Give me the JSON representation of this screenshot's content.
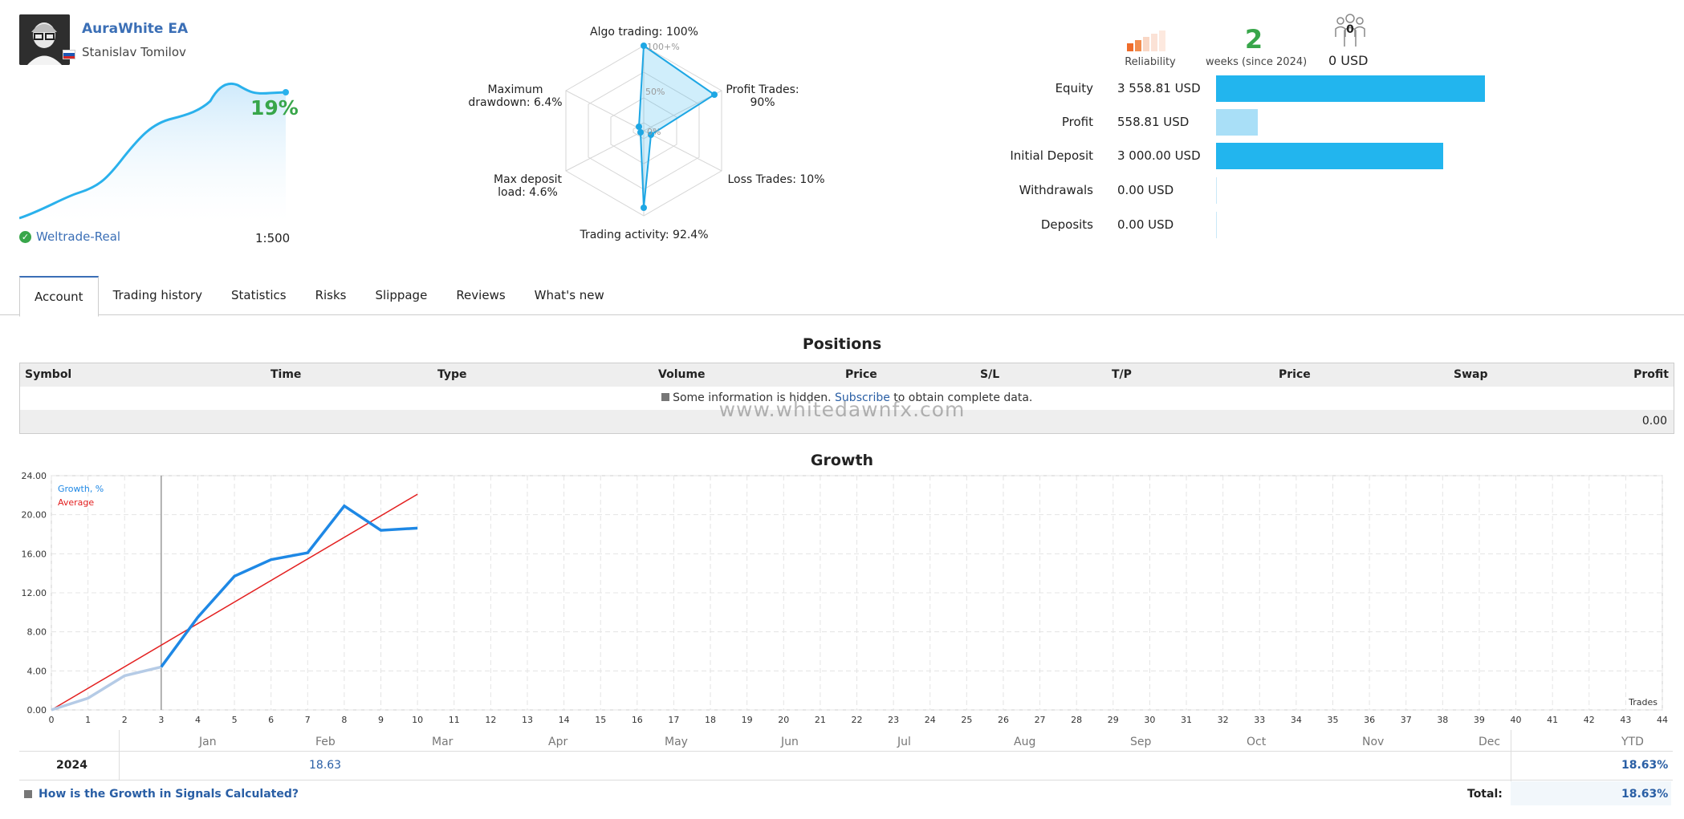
{
  "profile": {
    "name": "AuraWhite EA",
    "author": "Stanislav Tomilov",
    "growth_pct": "19%",
    "broker": "Weltrade-Real",
    "leverage": "1:500"
  },
  "radar": {
    "labels": {
      "algo": "Algo trading: 100%",
      "profit_trades": "Profit Trades:",
      "profit_trades_val": "90%",
      "loss_trades": "Loss Trades: 10%",
      "activity": "Trading activity: 92.4%",
      "deposit_load": "Max deposit",
      "deposit_load_val": "load: 4.6%",
      "drawdown": "Maximum",
      "drawdown_val": "drawdown: 6.4%"
    },
    "scale": {
      "top": "100+%",
      "mid": "50%",
      "zero": "0%"
    },
    "values": {
      "algo": 100,
      "profit_trades": 90,
      "loss_trades": 10,
      "activity": 92.4,
      "deposit_load": 4.6,
      "drawdown": 6.4
    }
  },
  "summary": {
    "reliability_label": "Reliability",
    "weeks": "2",
    "weeks_label": "weeks (since 2024)",
    "subscribers": "0",
    "subscribers_label": "0 USD",
    "rows": [
      {
        "label": "Equity",
        "value": "3 558.81 USD",
        "fraction": 0.97,
        "color": "#22b5ee"
      },
      {
        "label": "Profit",
        "value": "558.81 USD",
        "fraction": 0.15,
        "color": "#a9dff7"
      },
      {
        "label": "Initial Deposit",
        "value": "3 000.00 USD",
        "fraction": 0.82,
        "color": "#22b5ee"
      },
      {
        "label": "Withdrawals",
        "value": "0.00 USD",
        "fraction": 0,
        "color": "#22b5ee"
      },
      {
        "label": "Deposits",
        "value": "0.00 USD",
        "fraction": 0,
        "color": "#22b5ee"
      }
    ]
  },
  "tabs": [
    "Account",
    "Trading history",
    "Statistics",
    "Risks",
    "Slippage",
    "Reviews",
    "What's new"
  ],
  "positions": {
    "title": "Positions",
    "columns": [
      "Symbol",
      "Time",
      "Type",
      "Volume",
      "Price",
      "S/L",
      "T/P",
      "Price",
      "Swap",
      "Profit"
    ],
    "info_before": "Some information is hidden.",
    "info_link": "Subscribe",
    "info_after": "to obtain complete data.",
    "total": "0.00"
  },
  "watermark": "www.whitedawnfx.com",
  "growth": {
    "title": "Growth",
    "legend_growth": "Growth, %",
    "legend_average": "Average",
    "x_axis_label": "Trades",
    "months": [
      "Jan",
      "Feb",
      "Mar",
      "Apr",
      "May",
      "Jun",
      "Jul",
      "Aug",
      "Sep",
      "Oct",
      "Nov",
      "Dec"
    ],
    "ytd_label": "YTD",
    "year": "2024",
    "feb_value": "18.63",
    "ytd_value": "18.63%",
    "total_label": "Total:",
    "total_value": "18.63%",
    "footer_link": "How is the Growth in Signals Calculated?"
  },
  "chart_data": {
    "type": "line",
    "title": "Growth",
    "xlabel": "Trades",
    "ylabel": "",
    "xlim": [
      0,
      44
    ],
    "ylim": [
      0,
      24
    ],
    "yticks": [
      "0.00",
      "4.00",
      "8.00",
      "12.00",
      "16.00",
      "20.00",
      "24.00"
    ],
    "grid": true,
    "legend": "top-left",
    "series": [
      {
        "name": "Growth, %",
        "color": "#1e88e5",
        "x": [
          0,
          1,
          2,
          3,
          4,
          5,
          6,
          7,
          8,
          9,
          10
        ],
        "y": [
          0,
          1.2,
          3.5,
          4.4,
          9.5,
          13.7,
          15.4,
          16.1,
          20.9,
          18.4,
          18.63
        ]
      },
      {
        "name": "Average",
        "color": "#e32020",
        "x": [
          0,
          10
        ],
        "y": [
          0,
          22.1
        ]
      }
    ]
  }
}
